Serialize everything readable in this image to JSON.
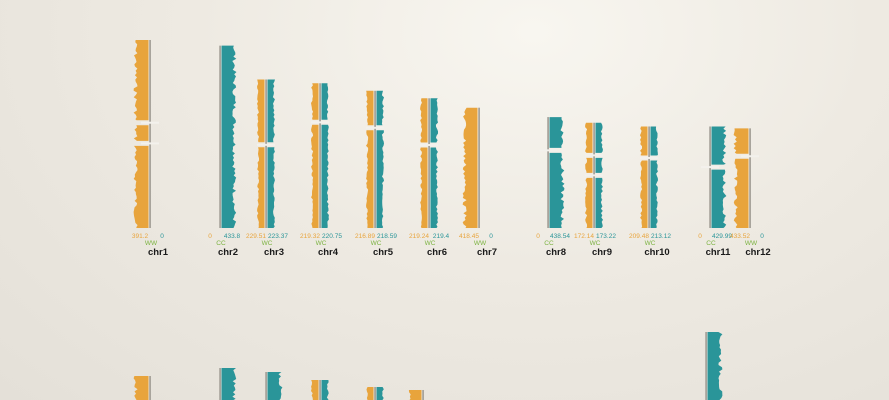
{
  "chart_data": {
    "type": "bar",
    "title": "",
    "colors": {
      "watson": "#e8a43c",
      "crick": "#2a9599",
      "state_label": "#7cb341",
      "ideogram": "#a8a49c",
      "name": "#1a1a1a"
    },
    "chromosomes": [
      {
        "name": "chr1",
        "state": "WW",
        "watson": "391.2",
        "crick": "0",
        "length": 1.0,
        "gaps": [
          0.44,
          0.55
        ],
        "watson_frac": 1.0,
        "crick_frac": 0.0
      },
      {
        "name": "chr2",
        "state": "CC",
        "watson": "0",
        "crick": "433.8",
        "length": 0.97,
        "gaps": [],
        "watson_frac": 0.0,
        "crick_frac": 1.0
      },
      {
        "name": "chr3",
        "state": "WC",
        "watson": "229.51",
        "crick": "223.37",
        "length": 0.79,
        "gaps": [
          0.44
        ],
        "watson_frac": 0.5,
        "crick_frac": 0.5
      },
      {
        "name": "chr4",
        "state": "WC",
        "watson": "219.32",
        "crick": "220.75",
        "length": 0.77,
        "gaps": [
          0.27
        ],
        "watson_frac": 0.5,
        "crick_frac": 0.5
      },
      {
        "name": "chr5",
        "state": "WC",
        "watson": "216.89",
        "crick": "218.59",
        "length": 0.73,
        "gaps": [
          0.27
        ],
        "watson_frac": 0.5,
        "crick_frac": 0.5
      },
      {
        "name": "chr6",
        "state": "WC",
        "watson": "219.24",
        "crick": "219.4",
        "length": 0.69,
        "gaps": [
          0.36
        ],
        "watson_frac": 0.5,
        "crick_frac": 0.5
      },
      {
        "name": "chr7",
        "state": "WW",
        "watson": "418.45",
        "crick": "0",
        "length": 0.64,
        "gaps": [],
        "watson_frac": 1.0,
        "crick_frac": 0.0
      },
      {
        "name": "chr8",
        "state": "CC",
        "watson": "0",
        "crick": "438.54",
        "length": 0.59,
        "gaps": [
          0.3
        ],
        "watson_frac": 0.0,
        "crick_frac": 1.0
      },
      {
        "name": "chr9",
        "state": "WC",
        "watson": "172.14",
        "crick": "173.22",
        "length": 0.56,
        "gaps": [
          0.31,
          0.5
        ],
        "watson_frac": 0.5,
        "crick_frac": 0.5
      },
      {
        "name": "chr10",
        "state": "WC",
        "watson": "209.48",
        "crick": "213.12",
        "length": 0.54,
        "gaps": [
          0.31
        ],
        "watson_frac": 0.5,
        "crick_frac": 0.5
      },
      {
        "name": "chr11",
        "state": "CC",
        "watson": "0",
        "crick": "429.99",
        "length": 0.54,
        "gaps": [
          0.4
        ],
        "watson_frac": 0.0,
        "crick_frac": 1.0
      },
      {
        "name": "chr12",
        "state": "WW",
        "watson": "433.52",
        "crick": "0",
        "length": 0.53,
        "gaps": [
          0.28
        ],
        "watson_frac": 1.0,
        "crick_frac": 0.0
      }
    ],
    "second_row": [
      {
        "watson_frac": 1.0,
        "crick_frac": 0.0
      },
      {
        "watson_frac": 0.0,
        "crick_frac": 1.0
      },
      {
        "watson_frac": 0.0,
        "crick_frac": 1.0
      },
      {
        "watson_frac": 0.5,
        "crick_frac": 0.5
      },
      {
        "watson_frac": 0.5,
        "crick_frac": 0.5
      },
      {
        "watson_frac": 1.0,
        "crick_frac": 0.0
      },
      {
        "watson_frac": 0.0,
        "crick_frac": 1.0
      }
    ]
  }
}
